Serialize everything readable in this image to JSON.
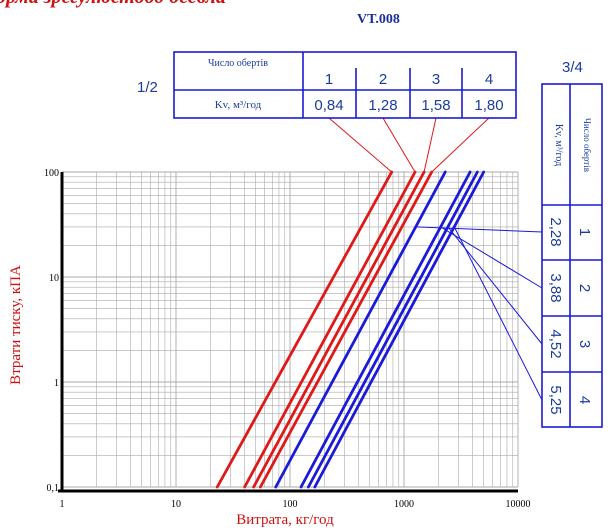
{
  "header": {
    "title_fragment": "орма зрегулюєтоод оесвла",
    "code": "VT.008"
  },
  "legend_left": {
    "group_label": "1/2",
    "row_turns_label": "Число обертів",
    "row_kv_label": "Kv, м³/год",
    "turns": [
      "1",
      "2",
      "3",
      "4"
    ],
    "kv": [
      "0,84",
      "1,28",
      "1,58",
      "1,80"
    ]
  },
  "legend_right": {
    "group_label": "3/4",
    "row_turns_label": "Число обертів",
    "row_kv_label": "Kv, м³/год",
    "turns": [
      "1",
      "2",
      "3",
      "4"
    ],
    "kv": [
      "2,28",
      "3,88",
      "4,52",
      "5,25"
    ]
  },
  "colors": {
    "red": "#e01818",
    "blue": "#1a1ad8",
    "axis_text": "#d01010",
    "grid": "#aaaaaa"
  },
  "chart_data": {
    "type": "line",
    "xscale": "log",
    "yscale": "log",
    "xlim": [
      1,
      10000
    ],
    "ylim": [
      0.1,
      100
    ],
    "xticks": [
      "1",
      "10",
      "100",
      "1000",
      "10000"
    ],
    "yticks": [
      "0,1",
      "1",
      "10",
      "100"
    ],
    "xlabel": "Витрата, кг/год",
    "ylabel": "Втрати тиску, кПА",
    "series": [
      {
        "group": "1/2",
        "x": [
          23,
          780
        ],
        "y": [
          0.1,
          100
        ],
        "color": "red"
      },
      {
        "group": "1/2",
        "x": [
          40,
          1250
        ],
        "y": [
          0.1,
          100
        ],
        "color": "red"
      },
      {
        "group": "1/2",
        "x": [
          48,
          1500
        ],
        "y": [
          0.1,
          100
        ],
        "color": "red"
      },
      {
        "group": "1/2",
        "x": [
          55,
          1750
        ],
        "y": [
          0.1,
          100
        ],
        "color": "red"
      },
      {
        "group": "3/4",
        "x": [
          75,
          2300
        ],
        "y": [
          0.1,
          100
        ],
        "color": "blue"
      },
      {
        "group": "3/4",
        "x": [
          125,
          3800
        ],
        "y": [
          0.1,
          100
        ],
        "color": "blue"
      },
      {
        "group": "3/4",
        "x": [
          145,
          4400
        ],
        "y": [
          0.1,
          100
        ],
        "color": "blue"
      },
      {
        "group": "3/4",
        "x": [
          165,
          5000
        ],
        "y": [
          0.1,
          100
        ],
        "color": "blue"
      }
    ]
  }
}
